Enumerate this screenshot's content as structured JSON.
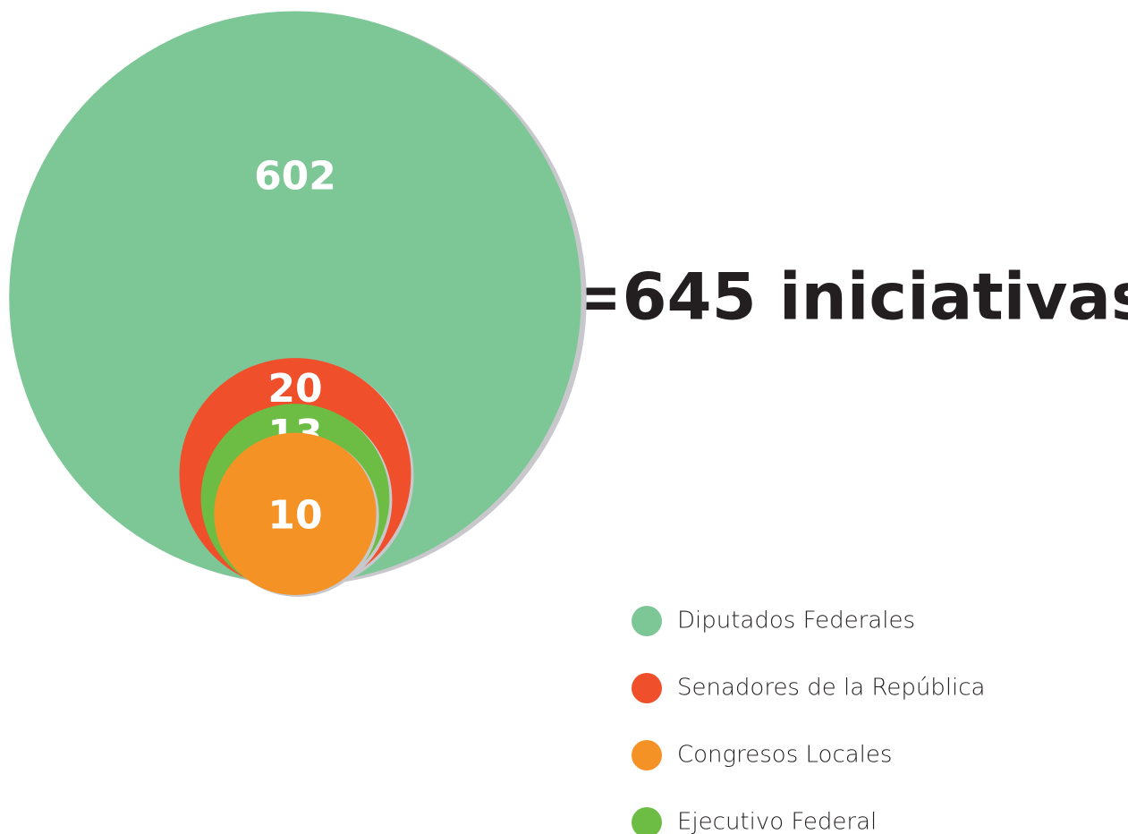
{
  "chart_data": {
    "type": "nested-bubble",
    "title": "=645 iniciativas",
    "series": [
      {
        "name": "Diputados Federales",
        "color": "#7dc797",
        "values": [
          602
        ]
      },
      {
        "name": "Senadores de la República",
        "color": "#f04f2b",
        "values": [
          20
        ]
      },
      {
        "name": "Congresos Locales",
        "color": "#f59226",
        "values": [
          10
        ]
      },
      {
        "name": "Ejecutivo Federal",
        "color": "#6dbd45",
        "values": [
          13
        ]
      }
    ]
  }
}
